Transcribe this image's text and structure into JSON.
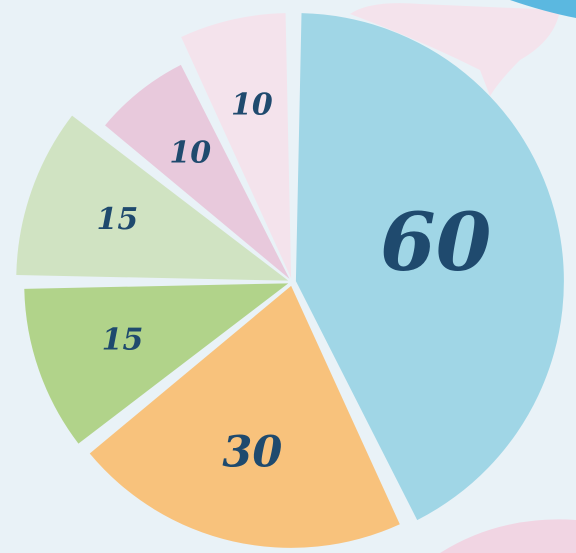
{
  "chart_data": {
    "type": "pie",
    "values": [
      60,
      30,
      15,
      15,
      10,
      10
    ],
    "colors": [
      "#a0d6e6",
      "#f8c27c",
      "#b1d38a",
      "#d0e3c2",
      "#e8c9dc",
      "#f4e3ec"
    ]
  }
}
